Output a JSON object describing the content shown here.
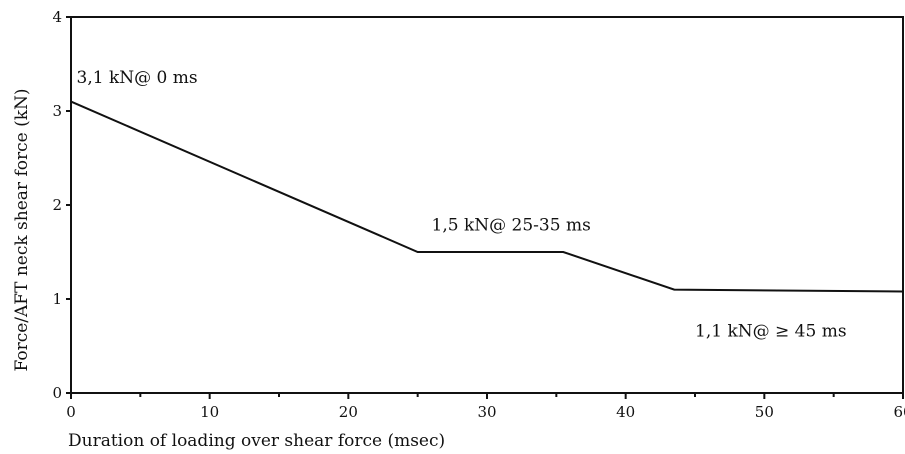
{
  "chart_data": {
    "type": "line",
    "title": "",
    "xlabel": "Duration of loading over shear force (msec)",
    "ylabel": "Force/AFT neck shear force (kN)",
    "xlim": [
      0,
      60
    ],
    "ylim": [
      0,
      4
    ],
    "x_ticks": [
      0,
      10,
      20,
      30,
      40,
      50,
      60
    ],
    "y_ticks": [
      0,
      1,
      2,
      3,
      4
    ],
    "grid": false,
    "series": [
      {
        "x": [
          0,
          25,
          35.5,
          43.5,
          60
        ],
        "y": [
          3.1,
          1.5,
          1.5,
          1.1,
          1.08
        ]
      }
    ],
    "annotations": [
      {
        "text": "3,1 kN@ 0 ms",
        "x": 0.4,
        "y": 3.3
      },
      {
        "text": "1,5 kN@ 25-35 ms",
        "x": 26,
        "y": 1.73
      },
      {
        "text": "1,1 kN@ ≥ 45 ms",
        "x": 45,
        "y": 0.6
      }
    ]
  }
}
